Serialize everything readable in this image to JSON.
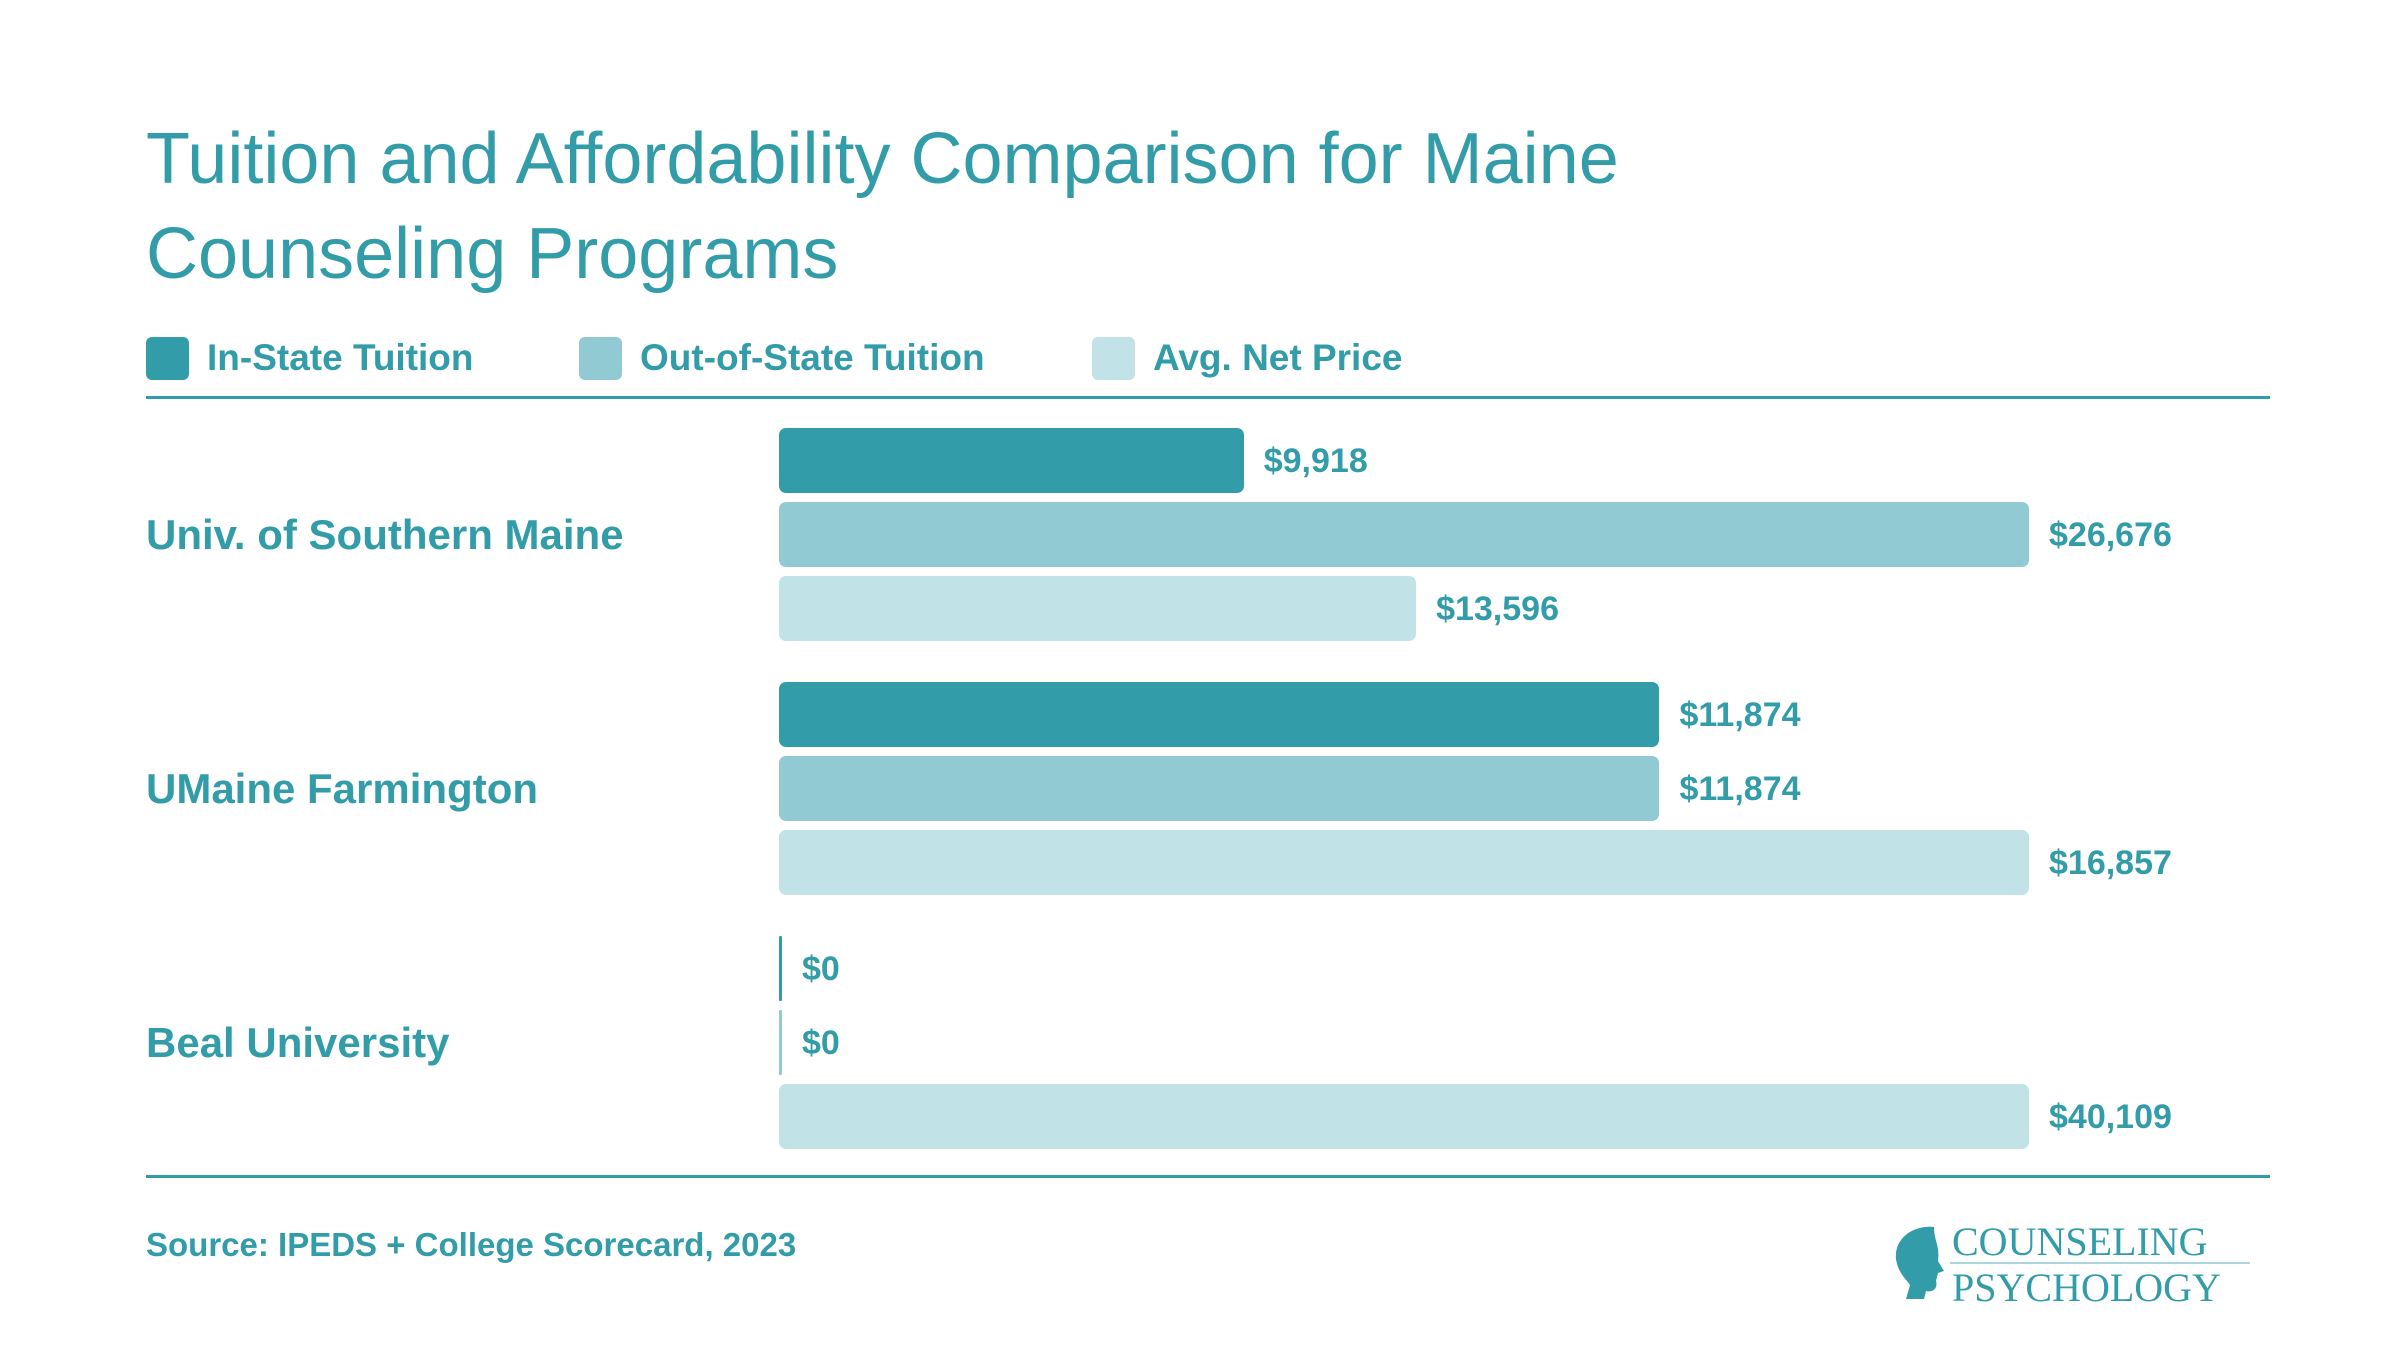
{
  "chart_data": {
    "type": "bar",
    "orientation": "horizontal",
    "title": "Tuition and Affordability Comparison for Maine Counseling Programs",
    "categories": [
      "Univ. of Southern Maine",
      "UMaine Farmington",
      "Beal University"
    ],
    "series": [
      {
        "name": "In-State Tuition",
        "color": "#329ca9",
        "values": [
          9918,
          11874,
          0
        ],
        "labels": [
          "$9,918",
          "$11,874",
          "$0"
        ]
      },
      {
        "name": "Out-of-State Tuition",
        "color": "#91cad3",
        "values": [
          26676,
          11874,
          0
        ],
        "labels": [
          "$26,676",
          "$11,874",
          "$0"
        ]
      },
      {
        "name": "Avg. Net Price",
        "color": "#c1e3e7",
        "values": [
          13596,
          16857,
          40109
        ],
        "labels": [
          "$13,596",
          "$16,857",
          "$40,109"
        ]
      }
    ],
    "legend": "top-left",
    "grid": false,
    "note": "Bars are scaled within each institution group (longest bar in each group is full width)."
  },
  "source": "Source: IPEDS + College Scorecard, 2023",
  "logo": {
    "line1": "COUNSELING",
    "line2": "PSYCHOLOGY"
  }
}
